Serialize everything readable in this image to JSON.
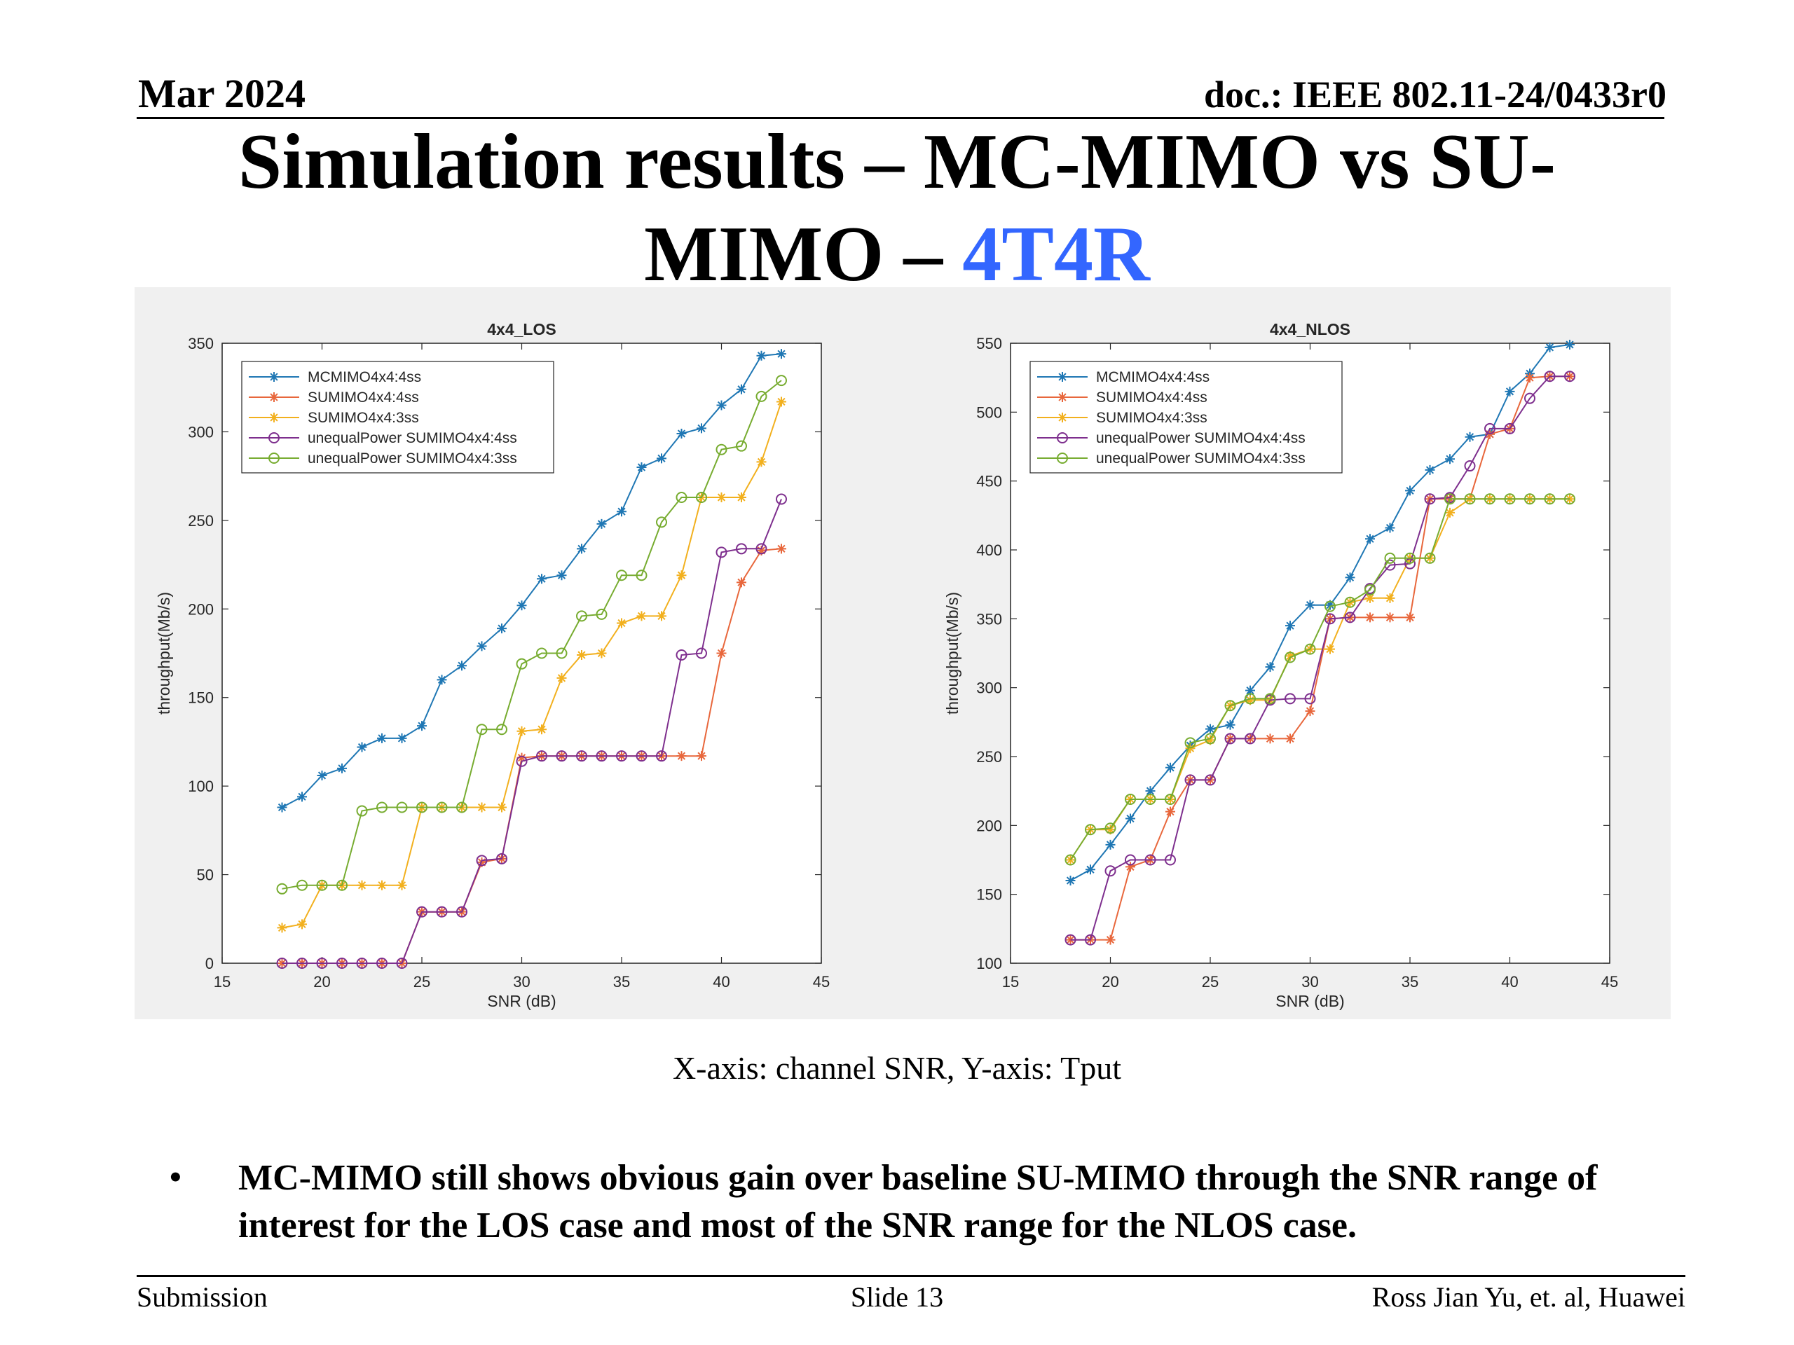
{
  "header": {
    "date": "Mar 2024",
    "doc": "doc.: IEEE 802.11-24/0433r0"
  },
  "title": {
    "line1": "Simulation results – MC-MIMO vs SU-",
    "line2_pre": "MIMO – ",
    "line2_accent": "4T4R"
  },
  "colors": {
    "accent": "#3366ff",
    "series": [
      "#1f77b4",
      "#e8673c",
      "#f2b01e",
      "#7e2f8e",
      "#77ac30"
    ]
  },
  "caption": "X-axis: channel SNR, Y-axis: Tput",
  "bullet": "MC-MIMO still shows obvious gain over baseline SU-MIMO  through the SNR range of interest for the LOS case and most of the SNR range for the NLOS case.",
  "footer": {
    "left": "Submission",
    "center": "Slide 13",
    "right": "Ross Jian Yu, et. al, Huawei"
  },
  "chart_data": [
    {
      "type": "line",
      "title": "4x4_LOS",
      "xlabel": "SNR (dB)",
      "ylabel": "throughput(Mb/s)",
      "xlim": [
        15,
        45
      ],
      "ylim": [
        0,
        350
      ],
      "xticks": [
        15,
        20,
        25,
        30,
        35,
        40,
        45
      ],
      "yticks": [
        0,
        50,
        100,
        150,
        200,
        250,
        300,
        350
      ],
      "legend_position": "top-left",
      "x": [
        18,
        19,
        20,
        21,
        22,
        23,
        24,
        25,
        26,
        27,
        28,
        29,
        30,
        31,
        32,
        33,
        34,
        35,
        36,
        37,
        38,
        39,
        40,
        41,
        42,
        43
      ],
      "series": [
        {
          "name": "MCMIMO4x4:4ss",
          "marker": "star",
          "values": [
            88,
            94,
            106,
            110,
            122,
            127,
            127,
            134,
            160,
            168,
            179,
            189,
            202,
            217,
            219,
            234,
            248,
            255,
            280,
            285,
            299,
            302,
            315,
            324,
            343,
            344
          ]
        },
        {
          "name": "SUMIMO4x4:4ss",
          "marker": "star",
          "values": [
            0,
            0,
            0,
            0,
            0,
            0,
            0,
            29,
            29,
            29,
            57,
            59,
            116,
            117,
            117,
            117,
            117,
            117,
            117,
            117,
            117,
            117,
            175,
            215,
            233,
            234
          ]
        },
        {
          "name": "SUMIMO4x4:3ss",
          "marker": "star",
          "values": [
            20,
            22,
            44,
            44,
            44,
            44,
            44,
            88,
            88,
            88,
            88,
            88,
            131,
            132,
            161,
            174,
            175,
            192,
            196,
            196,
            219,
            263,
            263,
            263,
            283,
            317
          ]
        },
        {
          "name": "unequalPower SUMIMO4x4:4ss",
          "marker": "circle",
          "values": [
            0,
            0,
            0,
            0,
            0,
            0,
            0,
            29,
            29,
            29,
            58,
            59,
            114,
            117,
            117,
            117,
            117,
            117,
            117,
            117,
            174,
            175,
            232,
            234,
            234,
            262
          ]
        },
        {
          "name": "unequalPower SUMIMO4x4:3ss",
          "marker": "circle",
          "values": [
            42,
            44,
            44,
            44,
            86,
            88,
            88,
            88,
            88,
            88,
            132,
            132,
            169,
            175,
            175,
            196,
            197,
            219,
            219,
            249,
            263,
            263,
            290,
            292,
            320,
            329
          ]
        }
      ]
    },
    {
      "type": "line",
      "title": "4x4_NLOS",
      "xlabel": "SNR (dB)",
      "ylabel": "throughput(Mb/s)",
      "xlim": [
        15,
        45
      ],
      "ylim": [
        100,
        550
      ],
      "xticks": [
        15,
        20,
        25,
        30,
        35,
        40,
        45
      ],
      "yticks": [
        100,
        150,
        200,
        250,
        300,
        350,
        400,
        450,
        500,
        550
      ],
      "legend_position": "top-left",
      "x": [
        18,
        19,
        20,
        21,
        22,
        23,
        24,
        25,
        26,
        27,
        28,
        29,
        30,
        31,
        32,
        33,
        34,
        35,
        36,
        37,
        38,
        39,
        40,
        41,
        42,
        43
      ],
      "series": [
        {
          "name": "MCMIMO4x4:4ss",
          "marker": "star",
          "values": [
            160,
            168,
            186,
            205,
            225,
            242,
            258,
            270,
            273,
            298,
            315,
            345,
            360,
            360,
            380,
            408,
            416,
            443,
            458,
            466,
            482,
            484,
            515,
            528,
            547,
            549
          ]
        },
        {
          "name": "SUMIMO4x4:4ss",
          "marker": "star",
          "values": [
            117,
            117,
            117,
            170,
            175,
            210,
            233,
            233,
            263,
            263,
            263,
            263,
            283,
            350,
            351,
            351,
            351,
            351,
            437,
            437,
            437,
            484,
            488,
            525,
            526,
            526
          ]
        },
        {
          "name": "SUMIMO4x4:3ss",
          "marker": "star",
          "values": [
            175,
            197,
            197,
            219,
            219,
            219,
            256,
            262,
            287,
            291,
            291,
            323,
            328,
            328,
            362,
            365,
            365,
            394,
            394,
            427,
            437,
            437,
            437,
            437,
            437,
            437
          ]
        },
        {
          "name": "unequalPower SUMIMO4x4:4ss",
          "marker": "circle",
          "values": [
            117,
            117,
            167,
            175,
            175,
            175,
            233,
            233,
            263,
            263,
            291,
            292,
            292,
            350,
            351,
            372,
            389,
            390,
            437,
            438,
            461,
            488,
            488,
            510,
            526,
            526
          ]
        },
        {
          "name": "unequalPower SUMIMO4x4:3ss",
          "marker": "circle",
          "values": [
            175,
            197,
            198,
            219,
            219,
            219,
            260,
            263,
            287,
            292,
            292,
            322,
            328,
            359,
            362,
            371,
            394,
            394,
            394,
            437,
            437,
            437,
            437,
            437,
            437,
            437
          ]
        }
      ]
    }
  ]
}
